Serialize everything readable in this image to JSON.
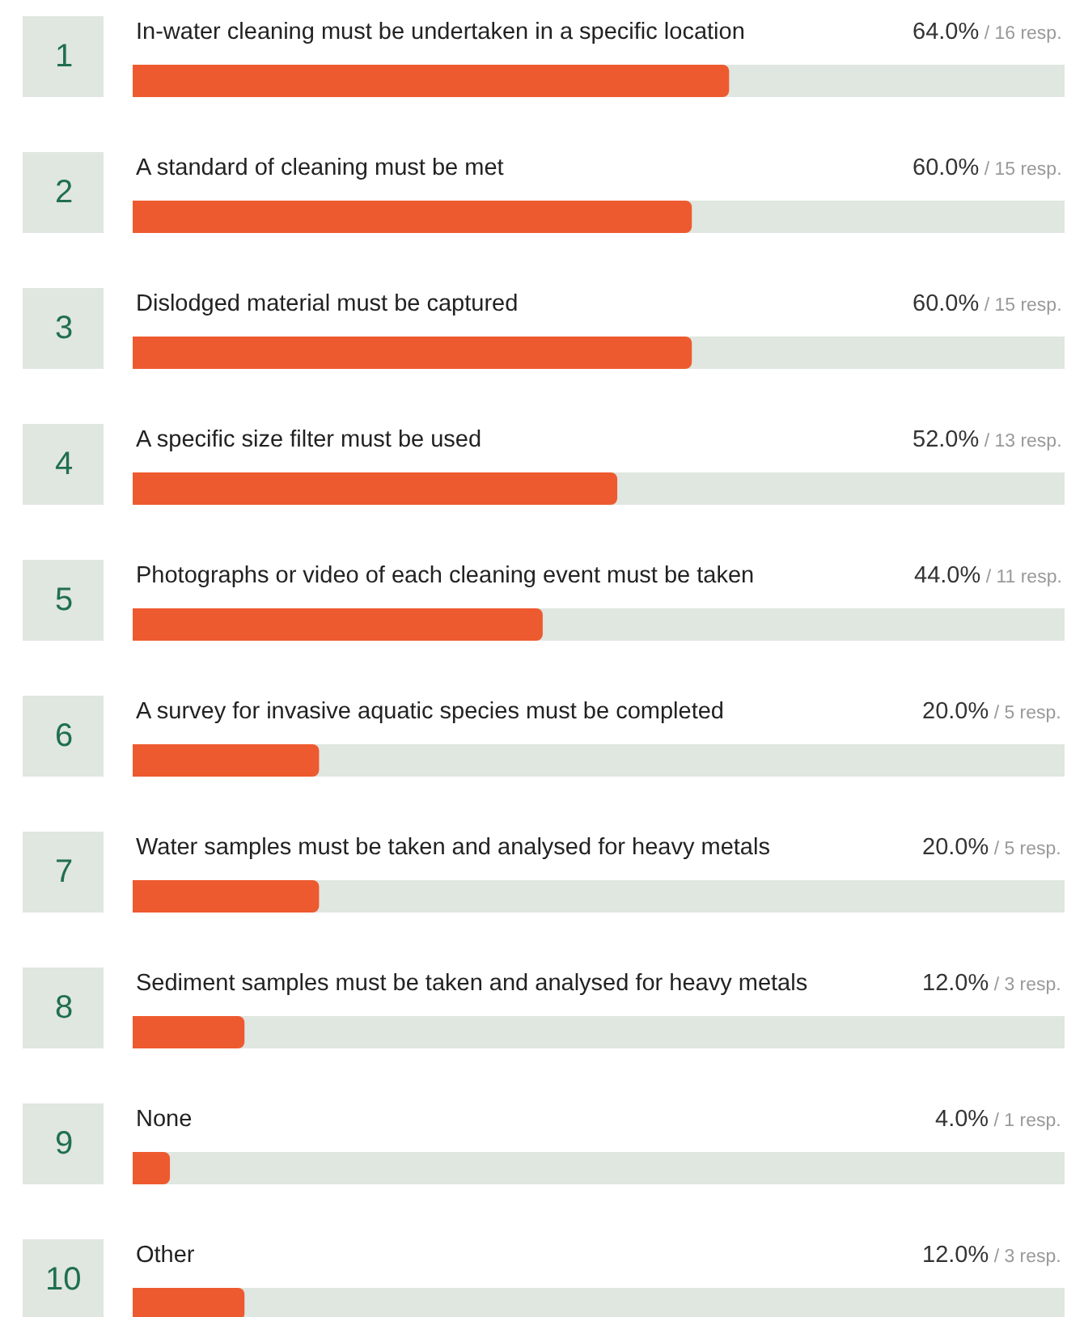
{
  "chart_data": {
    "type": "bar",
    "orientation": "horizontal",
    "categories": [
      "In-water cleaning must be undertaken in a specific location",
      "A standard of cleaning must be met",
      "Dislodged material must be captured",
      "A specific size filter must be used",
      "Photographs or video of each cleaning event must be taken",
      "A survey for invasive aquatic species must be completed",
      "Water samples must be taken and analysed for heavy metals",
      "Sediment samples must be taken and analysed for heavy metals",
      "None",
      "Other"
    ],
    "values": [
      64,
      60,
      60,
      52,
      44,
      20,
      20,
      12,
      4,
      12
    ],
    "value_labels": [
      "64.0% / 16 resp.",
      "60.0% / 15 resp.",
      "60.0% / 15 resp.",
      "52.0% / 13 resp.",
      "44.0% / 11 resp.",
      "20.0% / 5 resp.",
      "20.0% / 5 resp.",
      "12.0% / 3 resp.",
      "4.0% / 1 resp.",
      "12.0% / 3 resp."
    ],
    "annotations": [
      "1",
      "2",
      "3",
      "4",
      "5",
      "6",
      "7",
      "8",
      "9",
      "10"
    ],
    "color": "#ee5a2f",
    "xlim": [
      0,
      100
    ],
    "tick_labels": false,
    "grid": false,
    "legend": false
  }
}
